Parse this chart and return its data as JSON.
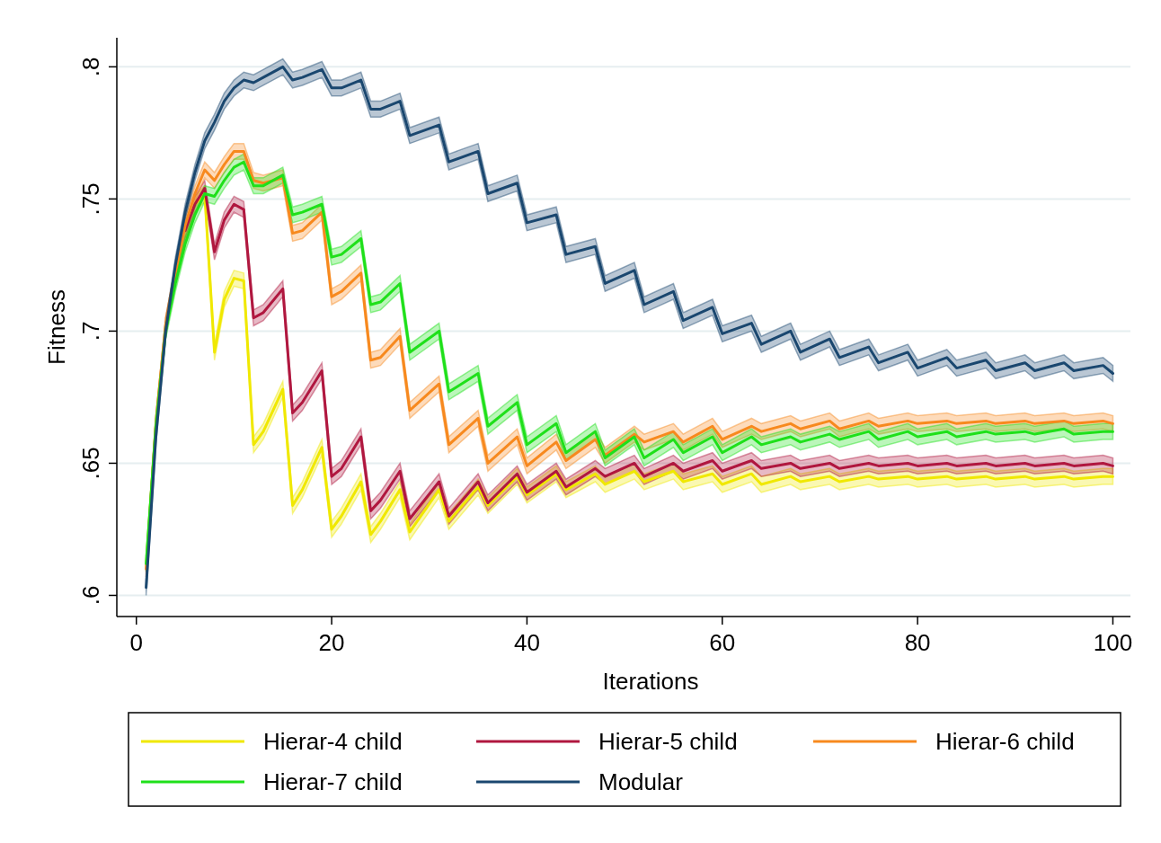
{
  "chart_data": {
    "type": "line",
    "xlabel": "Iterations",
    "ylabel": "Fitness",
    "xlim": [
      -2,
      101.8
    ],
    "ylim": [
      0.592,
      0.811
    ],
    "xticks": [
      0,
      20,
      40,
      60,
      80,
      100
    ],
    "yticks": [
      {
        "value": 0.6,
        "label": ".6"
      },
      {
        "value": 0.65,
        "label": ".65"
      },
      {
        "value": 0.7,
        "label": ".7"
      },
      {
        "value": 0.75,
        "label": ".75"
      },
      {
        "value": 0.8,
        "label": ".8"
      }
    ],
    "grid": "y",
    "legend": "bottom",
    "marker": "none",
    "line_style": "solid",
    "series": [
      {
        "name": "Hierar-4 child",
        "color": "#f0e800",
        "x": [
          1,
          2,
          3,
          4,
          5,
          6,
          7,
          8,
          9,
          10,
          11,
          12,
          13,
          15,
          16,
          17,
          19,
          20,
          21,
          23,
          24,
          25,
          27,
          28,
          31,
          32,
          35,
          36,
          39,
          40,
          43,
          44,
          47,
          48,
          51,
          52,
          55,
          56,
          59,
          60,
          63,
          64,
          67,
          68,
          71,
          72,
          75,
          76,
          79,
          80,
          83,
          84,
          87,
          88,
          91,
          92,
          95,
          96,
          99,
          100
        ],
        "values": [
          null,
          null,
          null,
          null,
          null,
          0.748,
          0.752,
          0.692,
          0.712,
          0.72,
          0.719,
          0.657,
          0.662,
          0.678,
          0.634,
          0.64,
          0.656,
          0.625,
          0.63,
          0.643,
          0.623,
          0.628,
          0.64,
          0.624,
          0.64,
          0.628,
          0.641,
          0.634,
          0.645,
          0.638,
          0.646,
          0.64,
          0.646,
          0.642,
          0.647,
          0.643,
          0.647,
          0.643,
          0.646,
          0.642,
          0.646,
          0.642,
          0.645,
          0.643,
          0.645,
          0.643,
          0.645,
          0.644,
          0.645,
          0.644,
          0.645,
          0.644,
          0.645,
          0.644,
          0.645,
          0.644,
          0.645,
          0.644,
          0.645,
          0.645
        ],
        "lower": [
          0.609,
          0.662,
          0.699,
          0.719,
          0.735,
          0.745,
          0.749,
          0.689,
          0.709,
          0.717,
          0.716,
          0.654,
          0.659,
          0.675,
          0.631,
          0.637,
          0.653,
          0.622,
          0.627,
          0.64,
          0.62,
          0.625,
          0.637,
          0.621,
          0.637,
          0.625,
          0.638,
          0.631,
          0.642,
          0.635,
          0.643,
          0.637,
          0.643,
          0.639,
          0.644,
          0.64,
          0.644,
          0.64,
          0.643,
          0.639,
          0.643,
          0.639,
          0.642,
          0.64,
          0.642,
          0.64,
          0.642,
          0.641,
          0.642,
          0.641,
          0.642,
          0.641,
          0.642,
          0.641,
          0.642,
          0.641,
          0.642,
          0.641,
          0.642,
          0.642
        ],
        "upper": [
          0.615,
          0.668,
          0.705,
          0.725,
          0.741,
          0.751,
          0.755,
          0.695,
          0.715,
          0.723,
          0.722,
          0.66,
          0.665,
          0.681,
          0.637,
          0.643,
          0.659,
          0.628,
          0.633,
          0.646,
          0.626,
          0.631,
          0.643,
          0.627,
          0.643,
          0.631,
          0.644,
          0.637,
          0.648,
          0.641,
          0.649,
          0.643,
          0.649,
          0.645,
          0.65,
          0.646,
          0.65,
          0.646,
          0.649,
          0.645,
          0.649,
          0.645,
          0.648,
          0.646,
          0.648,
          0.646,
          0.648,
          0.647,
          0.648,
          0.647,
          0.648,
          0.647,
          0.648,
          0.647,
          0.648,
          0.647,
          0.648,
          0.647,
          0.648,
          0.648
        ]
      },
      {
        "name": "Hierar-5 child",
        "color": "#b0173f",
        "x": [
          1,
          2,
          3,
          4,
          5,
          6,
          7,
          8,
          9,
          10,
          11,
          12,
          13,
          15,
          16,
          17,
          19,
          20,
          21,
          23,
          24,
          25,
          27,
          28,
          31,
          32,
          35,
          36,
          39,
          40,
          43,
          44,
          47,
          48,
          51,
          52,
          55,
          56,
          59,
          60,
          63,
          64,
          67,
          68,
          71,
          72,
          75,
          76,
          79,
          80,
          83,
          84,
          87,
          88,
          91,
          92,
          95,
          96,
          99,
          100
        ],
        "values": [
          null,
          null,
          null,
          null,
          0.738,
          0.748,
          0.754,
          0.73,
          0.742,
          0.748,
          0.746,
          0.705,
          0.707,
          0.716,
          0.669,
          0.673,
          0.685,
          0.645,
          0.648,
          0.66,
          0.632,
          0.636,
          0.647,
          0.629,
          0.643,
          0.63,
          0.643,
          0.635,
          0.646,
          0.639,
          0.647,
          0.641,
          0.648,
          0.645,
          0.65,
          0.645,
          0.65,
          0.647,
          0.651,
          0.647,
          0.651,
          0.648,
          0.65,
          0.648,
          0.65,
          0.648,
          0.65,
          0.649,
          0.65,
          0.649,
          0.65,
          0.649,
          0.65,
          0.649,
          0.65,
          0.649,
          0.65,
          0.649,
          0.65,
          0.649
        ],
        "lower": [
          0.607,
          0.662,
          0.699,
          0.719,
          0.735,
          0.745,
          0.751,
          0.727,
          0.739,
          0.745,
          0.743,
          0.702,
          0.704,
          0.713,
          0.666,
          0.67,
          0.682,
          0.642,
          0.645,
          0.657,
          0.629,
          0.633,
          0.644,
          0.626,
          0.64,
          0.627,
          0.64,
          0.632,
          0.643,
          0.636,
          0.644,
          0.638,
          0.645,
          0.642,
          0.647,
          0.642,
          0.647,
          0.644,
          0.648,
          0.644,
          0.648,
          0.645,
          0.647,
          0.645,
          0.647,
          0.645,
          0.647,
          0.646,
          0.647,
          0.646,
          0.647,
          0.646,
          0.647,
          0.646,
          0.647,
          0.646,
          0.647,
          0.646,
          0.647,
          0.646
        ],
        "upper": [
          0.613,
          0.668,
          0.705,
          0.725,
          0.741,
          0.751,
          0.757,
          0.733,
          0.745,
          0.751,
          0.749,
          0.708,
          0.71,
          0.719,
          0.672,
          0.676,
          0.688,
          0.648,
          0.651,
          0.663,
          0.635,
          0.639,
          0.65,
          0.632,
          0.646,
          0.633,
          0.646,
          0.638,
          0.649,
          0.642,
          0.65,
          0.644,
          0.651,
          0.648,
          0.653,
          0.648,
          0.653,
          0.65,
          0.654,
          0.65,
          0.654,
          0.651,
          0.653,
          0.651,
          0.653,
          0.651,
          0.653,
          0.652,
          0.653,
          0.652,
          0.653,
          0.652,
          0.653,
          0.652,
          0.653,
          0.652,
          0.653,
          0.652,
          0.653,
          0.652
        ]
      },
      {
        "name": "Hierar-6 child",
        "color": "#f7891e",
        "x": [
          1,
          2,
          3,
          4,
          5,
          6,
          7,
          8,
          9,
          10,
          11,
          12,
          13,
          15,
          16,
          17,
          19,
          20,
          21,
          23,
          24,
          25,
          27,
          28,
          31,
          32,
          35,
          36,
          39,
          40,
          43,
          44,
          47,
          48,
          51,
          52,
          55,
          56,
          59,
          60,
          63,
          64,
          67,
          68,
          71,
          72,
          75,
          76,
          79,
          80,
          83,
          84,
          87,
          88,
          91,
          92,
          95,
          96,
          99,
          100
        ],
        "values": [
          0.61,
          0.665,
          0.702,
          0.722,
          0.74,
          0.752,
          0.761,
          0.757,
          0.763,
          0.768,
          0.768,
          0.757,
          0.756,
          0.758,
          0.737,
          0.738,
          0.745,
          0.713,
          0.715,
          0.722,
          0.689,
          0.69,
          0.698,
          0.67,
          0.68,
          0.657,
          0.667,
          0.65,
          0.66,
          0.649,
          0.658,
          0.651,
          0.659,
          0.653,
          0.661,
          0.658,
          0.662,
          0.658,
          0.664,
          0.659,
          0.664,
          0.662,
          0.665,
          0.663,
          0.666,
          0.663,
          0.666,
          0.664,
          0.666,
          0.665,
          0.666,
          0.665,
          0.666,
          0.665,
          0.666,
          0.665,
          0.666,
          0.665,
          0.666,
          0.665
        ],
        "lower": [
          0.607,
          0.662,
          0.699,
          0.719,
          0.737,
          0.749,
          0.758,
          0.754,
          0.76,
          0.765,
          0.765,
          0.754,
          0.753,
          0.755,
          0.734,
          0.735,
          0.742,
          0.71,
          0.712,
          0.719,
          0.686,
          0.687,
          0.695,
          0.667,
          0.677,
          0.654,
          0.664,
          0.647,
          0.657,
          0.646,
          0.655,
          0.648,
          0.656,
          0.65,
          0.658,
          0.655,
          0.659,
          0.655,
          0.661,
          0.656,
          0.661,
          0.659,
          0.662,
          0.66,
          0.663,
          0.66,
          0.663,
          0.661,
          0.663,
          0.662,
          0.663,
          0.662,
          0.663,
          0.662,
          0.663,
          0.662,
          0.663,
          0.662,
          0.663,
          0.662
        ],
        "upper": [
          0.613,
          0.668,
          0.705,
          0.725,
          0.743,
          0.755,
          0.764,
          0.76,
          0.766,
          0.771,
          0.771,
          0.76,
          0.759,
          0.761,
          0.74,
          0.741,
          0.748,
          0.716,
          0.718,
          0.725,
          0.692,
          0.693,
          0.701,
          0.673,
          0.683,
          0.66,
          0.67,
          0.653,
          0.663,
          0.652,
          0.661,
          0.654,
          0.662,
          0.656,
          0.664,
          0.661,
          0.665,
          0.661,
          0.667,
          0.662,
          0.667,
          0.665,
          0.668,
          0.666,
          0.669,
          0.666,
          0.669,
          0.667,
          0.669,
          0.668,
          0.669,
          0.668,
          0.669,
          0.668,
          0.669,
          0.668,
          0.669,
          0.668,
          0.669,
          0.668
        ]
      },
      {
        "name": "Hierar-7 child",
        "color": "#1fe01a",
        "x": [
          1,
          2,
          3,
          4,
          5,
          6,
          7,
          8,
          9,
          10,
          11,
          12,
          13,
          15,
          16,
          17,
          19,
          20,
          21,
          23,
          24,
          25,
          27,
          28,
          31,
          32,
          35,
          36,
          39,
          40,
          43,
          44,
          47,
          48,
          51,
          52,
          55,
          56,
          59,
          60,
          63,
          64,
          67,
          68,
          71,
          72,
          75,
          76,
          79,
          80,
          83,
          84,
          87,
          88,
          91,
          92,
          95,
          96,
          99,
          100
        ],
        "values": [
          0.612,
          0.664,
          0.7,
          0.718,
          0.733,
          0.744,
          0.752,
          0.751,
          0.757,
          0.762,
          0.764,
          0.755,
          0.755,
          0.759,
          0.744,
          0.745,
          0.748,
          0.728,
          0.729,
          0.735,
          0.71,
          0.711,
          0.718,
          0.692,
          0.7,
          0.677,
          0.684,
          0.664,
          0.673,
          0.657,
          0.665,
          0.654,
          0.662,
          0.652,
          0.66,
          0.652,
          0.659,
          0.654,
          0.66,
          0.654,
          0.66,
          0.657,
          0.66,
          0.658,
          0.661,
          0.659,
          0.662,
          0.659,
          0.662,
          0.66,
          0.662,
          0.66,
          0.662,
          0.661,
          0.662,
          0.661,
          0.663,
          0.661,
          0.662,
          0.662
        ],
        "lower": [
          0.609,
          0.661,
          0.697,
          0.715,
          0.73,
          0.741,
          0.749,
          0.748,
          0.754,
          0.759,
          0.761,
          0.752,
          0.752,
          0.756,
          0.741,
          0.742,
          0.745,
          0.725,
          0.726,
          0.732,
          0.707,
          0.708,
          0.715,
          0.689,
          0.697,
          0.674,
          0.681,
          0.661,
          0.67,
          0.654,
          0.662,
          0.651,
          0.659,
          0.649,
          0.657,
          0.649,
          0.656,
          0.651,
          0.657,
          0.651,
          0.657,
          0.654,
          0.657,
          0.655,
          0.658,
          0.656,
          0.659,
          0.656,
          0.659,
          0.657,
          0.659,
          0.657,
          0.659,
          0.658,
          0.659,
          0.658,
          0.66,
          0.658,
          0.659,
          0.659
        ],
        "upper": [
          0.615,
          0.667,
          0.703,
          0.721,
          0.736,
          0.747,
          0.755,
          0.754,
          0.76,
          0.765,
          0.767,
          0.758,
          0.758,
          0.762,
          0.747,
          0.748,
          0.751,
          0.731,
          0.732,
          0.738,
          0.713,
          0.714,
          0.721,
          0.695,
          0.703,
          0.68,
          0.687,
          0.667,
          0.676,
          0.66,
          0.668,
          0.657,
          0.665,
          0.655,
          0.663,
          0.655,
          0.662,
          0.657,
          0.663,
          0.657,
          0.663,
          0.66,
          0.663,
          0.661,
          0.664,
          0.662,
          0.665,
          0.662,
          0.665,
          0.663,
          0.665,
          0.663,
          0.665,
          0.664,
          0.665,
          0.664,
          0.666,
          0.664,
          0.665,
          0.665
        ]
      },
      {
        "name": "Modular",
        "color": "#1a476f",
        "x": [
          1,
          2,
          3,
          4,
          5,
          6,
          7,
          8,
          9,
          10,
          11,
          12,
          13,
          15,
          16,
          17,
          19,
          20,
          21,
          23,
          24,
          25,
          27,
          28,
          31,
          32,
          35,
          36,
          39,
          40,
          43,
          44,
          47,
          48,
          51,
          52,
          55,
          56,
          59,
          60,
          63,
          64,
          67,
          68,
          71,
          72,
          75,
          76,
          79,
          80,
          83,
          84,
          87,
          88,
          91,
          92,
          95,
          96,
          99,
          100
        ],
        "values": [
          0.603,
          0.66,
          0.7,
          0.725,
          0.745,
          0.76,
          0.772,
          0.779,
          0.787,
          0.792,
          0.795,
          0.794,
          0.796,
          0.8,
          0.795,
          0.796,
          0.799,
          0.792,
          0.792,
          0.795,
          0.784,
          0.784,
          0.787,
          0.774,
          0.778,
          0.764,
          0.768,
          0.752,
          0.756,
          0.741,
          0.744,
          0.729,
          0.732,
          0.718,
          0.723,
          0.71,
          0.715,
          0.704,
          0.709,
          0.699,
          0.703,
          0.695,
          0.7,
          0.692,
          0.697,
          0.69,
          0.694,
          0.688,
          0.692,
          0.686,
          0.69,
          0.686,
          0.689,
          0.685,
          0.688,
          0.685,
          0.688,
          0.685,
          0.687,
          0.684
        ],
        "lower": [
          0.6,
          0.657,
          0.697,
          0.722,
          0.742,
          0.757,
          0.769,
          0.776,
          0.784,
          0.789,
          0.792,
          0.791,
          0.793,
          0.797,
          0.792,
          0.793,
          0.796,
          0.789,
          0.789,
          0.792,
          0.781,
          0.781,
          0.784,
          0.771,
          0.775,
          0.761,
          0.765,
          0.749,
          0.753,
          0.738,
          0.741,
          0.726,
          0.729,
          0.715,
          0.72,
          0.707,
          0.712,
          0.701,
          0.706,
          0.696,
          0.7,
          0.692,
          0.697,
          0.689,
          0.694,
          0.687,
          0.691,
          0.685,
          0.689,
          0.683,
          0.687,
          0.683,
          0.686,
          0.682,
          0.685,
          0.682,
          0.685,
          0.682,
          0.684,
          0.681
        ],
        "upper": [
          0.606,
          0.663,
          0.703,
          0.728,
          0.748,
          0.763,
          0.775,
          0.782,
          0.79,
          0.795,
          0.798,
          0.797,
          0.799,
          0.803,
          0.798,
          0.799,
          0.802,
          0.795,
          0.795,
          0.798,
          0.787,
          0.787,
          0.79,
          0.777,
          0.781,
          0.767,
          0.771,
          0.755,
          0.759,
          0.744,
          0.747,
          0.732,
          0.735,
          0.721,
          0.726,
          0.713,
          0.718,
          0.707,
          0.712,
          0.702,
          0.706,
          0.698,
          0.703,
          0.695,
          0.7,
          0.693,
          0.697,
          0.691,
          0.695,
          0.689,
          0.693,
          0.689,
          0.692,
          0.688,
          0.691,
          0.688,
          0.691,
          0.688,
          0.69,
          0.687
        ]
      }
    ]
  }
}
